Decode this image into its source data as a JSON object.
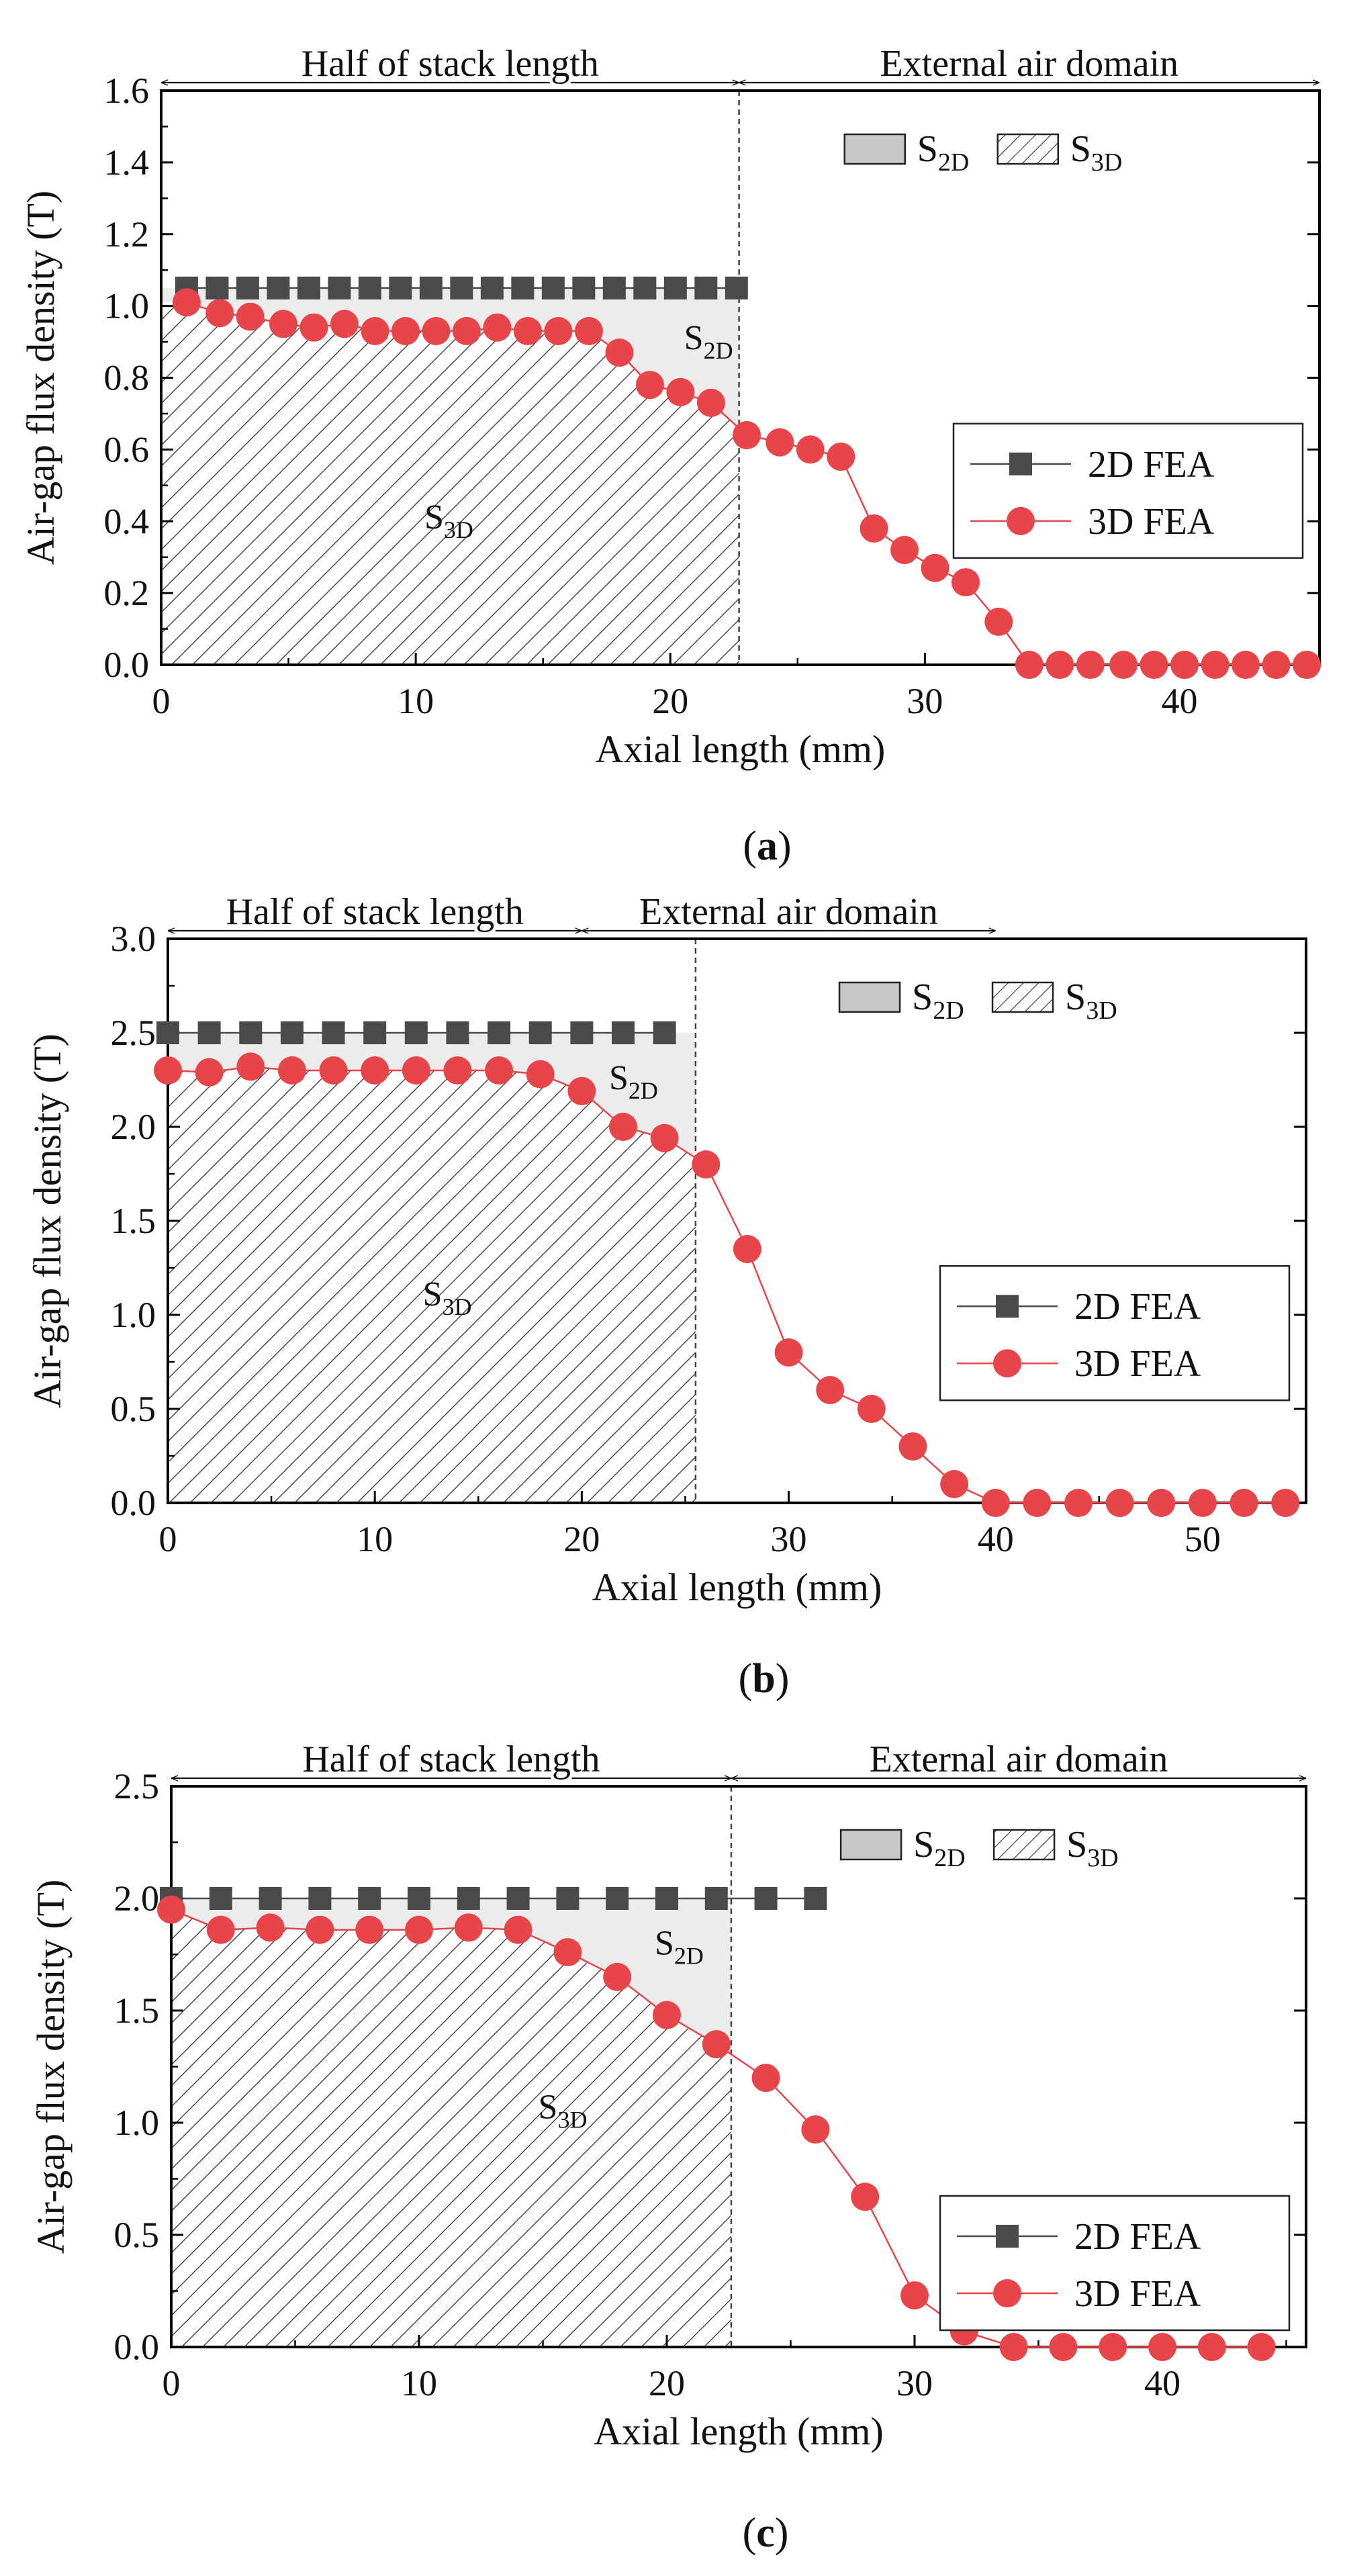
{
  "figure": {
    "chart_data": [
      {
        "type": "line",
        "panel": "a",
        "caption": "a",
        "title": "",
        "xlabel": "Axial length (mm)",
        "ylabel": "Air-gap flux density (T)",
        "xlim": [
          0,
          45.5
        ],
        "ylim": [
          0,
          1.6
        ],
        "xticks": [
          0,
          10,
          20,
          30,
          40
        ],
        "yticks": [
          0.0,
          0.2,
          0.4,
          0.6,
          0.8,
          1.0,
          1.2,
          1.4,
          1.6
        ],
        "ytick_labels": [
          "0.0",
          "0.2",
          "0.4",
          "0.6",
          "0.8",
          "1.0",
          "1.2",
          "1.4",
          "1.6"
        ],
        "xtick_labels": [
          "0",
          "10",
          "20",
          "30",
          "40"
        ],
        "boundary_x": 22.7,
        "left_span": {
          "label": "Half of stack length",
          "from": 0,
          "to": 22.7
        },
        "right_span": {
          "label": "External air domain",
          "from": 22.7,
          "to": 45.5
        },
        "region_labels": {
          "s2d": {
            "x": 21.5,
            "y": 0.88
          },
          "s3d": {
            "x": 11.3,
            "y": 0.38
          }
        },
        "legend_area": {
          "s2d": "S",
          "s2d_sub": "2D",
          "s3d": "S",
          "s3d_sub": "3D"
        },
        "legend": {
          "items": [
            "2D FEA",
            "3D FEA"
          ],
          "location": "center-right"
        },
        "series": [
          {
            "name": "2D FEA",
            "color": "#4a4a4a",
            "marker": "square",
            "x": [
              1.0,
              2.2,
              3.4,
              4.6,
              5.8,
              7.0,
              8.2,
              9.4,
              10.6,
              11.8,
              13.0,
              14.2,
              15.4,
              16.6,
              17.8,
              19.0,
              20.2,
              21.4,
              22.6
            ],
            "y": [
              1.05,
              1.05,
              1.05,
              1.05,
              1.05,
              1.05,
              1.05,
              1.05,
              1.05,
              1.05,
              1.05,
              1.05,
              1.05,
              1.05,
              1.05,
              1.05,
              1.05,
              1.05,
              1.05
            ]
          },
          {
            "name": "3D FEA",
            "color": "#e8454a",
            "marker": "circle",
            "x": [
              1.0,
              2.3,
              3.5,
              4.8,
              6.0,
              7.2,
              8.4,
              9.6,
              10.8,
              12.0,
              13.2,
              14.4,
              15.6,
              16.8,
              18.0,
              19.2,
              20.4,
              21.6,
              23.0,
              24.3,
              25.5,
              26.7,
              28.0,
              29.2,
              30.4,
              31.6,
              32.9,
              34.1,
              35.3,
              36.5,
              37.8,
              39.0,
              40.2,
              41.4,
              42.6,
              43.8,
              45.0
            ],
            "y": [
              1.01,
              0.98,
              0.97,
              0.95,
              0.94,
              0.95,
              0.93,
              0.93,
              0.93,
              0.93,
              0.94,
              0.93,
              0.93,
              0.93,
              0.87,
              0.78,
              0.76,
              0.73,
              0.64,
              0.62,
              0.6,
              0.58,
              0.38,
              0.32,
              0.27,
              0.23,
              0.12,
              0.0,
              0.0,
              0.0,
              0.0,
              0.0,
              0.0,
              0.0,
              0.0,
              0.0,
              0.0
            ]
          }
        ]
      },
      {
        "type": "line",
        "panel": "b",
        "caption": "b",
        "title": "",
        "xlabel": "Axial length (mm)",
        "ylabel": "Air-gap flux density (T)",
        "xlim": [
          0,
          55
        ],
        "ylim": [
          0,
          3.0
        ],
        "xticks": [
          0,
          10,
          20,
          30,
          40,
          50
        ],
        "yticks": [
          0.0,
          0.5,
          1.0,
          1.5,
          2.0,
          2.5,
          3.0
        ],
        "ytick_labels": [
          "0.0",
          "0.5",
          "1.0",
          "1.5",
          "2.0",
          "2.5",
          "3.0"
        ],
        "xtick_labels": [
          "0",
          "10",
          "20",
          "30",
          "40",
          "50"
        ],
        "boundary_x": 25.5,
        "left_span": {
          "label": "Half of stack length",
          "from": 0,
          "to": 20.0
        },
        "right_span": {
          "label": "External air domain",
          "from": 20.0,
          "to": 40.0
        },
        "region_labels": {
          "s2d": {
            "x": 22.5,
            "y": 2.2
          },
          "s3d": {
            "x": 13.5,
            "y": 1.05
          }
        },
        "legend_area": {
          "s2d": "S",
          "s2d_sub": "2D",
          "s3d": "S",
          "s3d_sub": "3D"
        },
        "legend": {
          "items": [
            "2D FEA",
            "3D FEA"
          ],
          "location": "center-right"
        },
        "series": [
          {
            "name": "2D FEA",
            "color": "#4a4a4a",
            "marker": "square",
            "x": [
              0,
              2,
              4,
              6,
              8,
              10,
              12,
              14,
              16,
              18,
              20,
              22,
              24
            ],
            "y": [
              2.5,
              2.5,
              2.5,
              2.5,
              2.5,
              2.5,
              2.5,
              2.5,
              2.5,
              2.5,
              2.5,
              2.5,
              2.5
            ]
          },
          {
            "name": "3D FEA",
            "color": "#e8454a",
            "marker": "circle",
            "x": [
              0,
              2,
              4,
              6,
              8,
              10,
              12,
              14,
              16,
              18,
              20,
              22,
              24,
              26,
              28,
              30,
              32,
              34,
              36,
              38,
              40,
              42,
              44,
              46,
              48,
              50,
              52,
              54
            ],
            "y": [
              2.3,
              2.29,
              2.32,
              2.3,
              2.3,
              2.3,
              2.3,
              2.3,
              2.3,
              2.28,
              2.19,
              2.0,
              1.94,
              1.8,
              1.35,
              0.8,
              0.6,
              0.5,
              0.3,
              0.1,
              0.0,
              0.0,
              0.0,
              0.0,
              0.0,
              0.0,
              0.0,
              0.0
            ]
          }
        ]
      },
      {
        "type": "line",
        "panel": "c",
        "caption": "c",
        "title": "",
        "xlabel": "Axial length (mm)",
        "ylabel": "Air-gap flux density (T)",
        "xlim": [
          0,
          45.8
        ],
        "ylim": [
          0,
          2.5
        ],
        "xticks": [
          0,
          10,
          20,
          30,
          40
        ],
        "yticks": [
          0.0,
          0.5,
          1.0,
          1.5,
          2.0,
          2.5
        ],
        "ytick_labels": [
          "0.0",
          "0.5",
          "1.0",
          "1.5",
          "2.0",
          "2.5"
        ],
        "xtick_labels": [
          "0",
          "10",
          "20",
          "30",
          "40"
        ],
        "boundary_x": 22.6,
        "left_span": {
          "label": "Half of stack length",
          "from": 0,
          "to": 22.6
        },
        "right_span": {
          "label": "External air domain",
          "from": 22.6,
          "to": 45.8
        },
        "region_labels": {
          "s2d": {
            "x": 20.5,
            "y": 1.75
          },
          "s3d": {
            "x": 15.8,
            "y": 1.02
          }
        },
        "legend_area": {
          "s2d": "S",
          "s2d_sub": "2D",
          "s3d": "S",
          "s3d_sub": "3D"
        },
        "legend": {
          "items": [
            "2D FEA",
            "3D FEA"
          ],
          "location": "bottom-right"
        },
        "series": [
          {
            "name": "2D FEA",
            "color": "#4a4a4a",
            "marker": "square",
            "x": [
              0,
              2,
              4,
              6,
              8,
              10,
              12,
              14,
              16,
              18,
              20,
              22,
              24,
              26
            ],
            "y": [
              2.0,
              2.0,
              2.0,
              2.0,
              2.0,
              2.0,
              2.0,
              2.0,
              2.0,
              2.0,
              2.0,
              2.0,
              2.0,
              2.0
            ]
          },
          {
            "name": "3D FEA",
            "color": "#e8454a",
            "marker": "circle",
            "x": [
              0,
              2,
              4,
              6,
              8,
              10,
              12,
              14,
              16,
              18,
              20,
              22,
              24,
              26,
              28,
              30,
              32,
              34,
              36,
              38,
              40,
              42,
              44
            ],
            "y": [
              1.95,
              1.86,
              1.87,
              1.86,
              1.86,
              1.86,
              1.87,
              1.86,
              1.76,
              1.65,
              1.48,
              1.35,
              1.2,
              0.97,
              0.67,
              0.23,
              0.07,
              0.0,
              0.0,
              0.0,
              0.0,
              0.0,
              0.0
            ]
          }
        ]
      }
    ]
  }
}
